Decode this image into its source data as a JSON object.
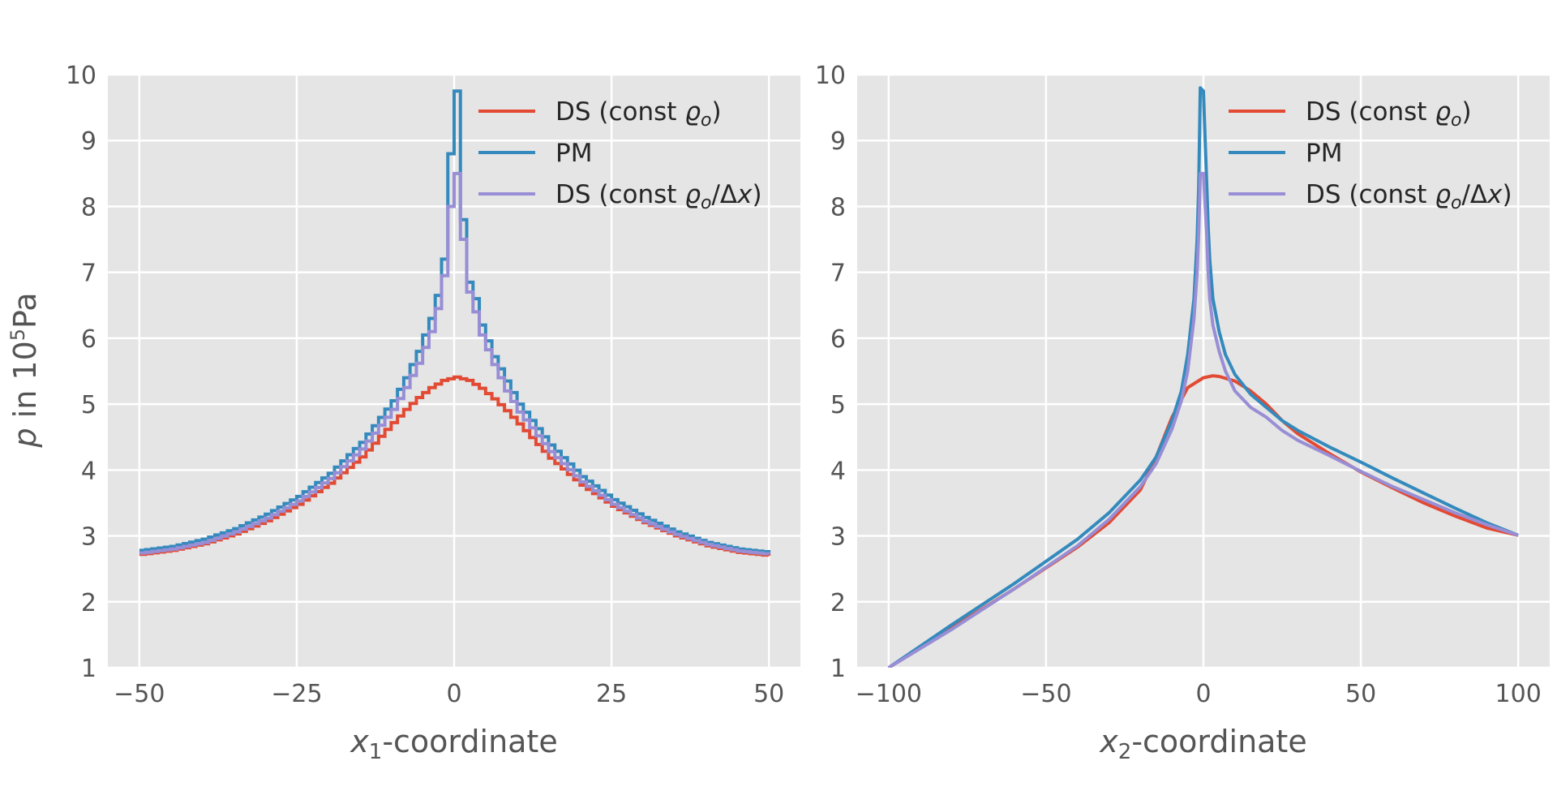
{
  "figure": {
    "ylabel_prefix": "p",
    "ylabel_middle": " in 10",
    "ylabel_exp": "5",
    "ylabel_unit": "Pa"
  },
  "colors": {
    "panel_bg": "#E5E5E5",
    "grid": "#FFFFFF",
    "text": "#555555",
    "legend_text": "#262626",
    "series": [
      "#E24A33",
      "#348ABD",
      "#988ED5"
    ]
  },
  "chart_data": [
    {
      "type": "line",
      "style": "step",
      "xlabel_var": "x",
      "xlabel_sub": "1",
      "xlabel_rest": "-coordinate",
      "xlim": [
        -55,
        55
      ],
      "ylim": [
        1,
        10
      ],
      "xticks": [
        "−50",
        "−25",
        "0",
        "25",
        "50"
      ],
      "xtick_values": [
        -50,
        -25,
        0,
        25,
        50
      ],
      "yticks": [
        "1",
        "2",
        "3",
        "4",
        "5",
        "6",
        "7",
        "8",
        "9",
        "10"
      ],
      "ytick_values": [
        1,
        2,
        3,
        4,
        5,
        6,
        7,
        8,
        9,
        10
      ],
      "grid": true,
      "legend_position": "top-right",
      "series": [
        {
          "name_plain": "DS (const ",
          "name_symbol": "ϱ",
          "name_sub": "o",
          "name_tail": ")",
          "name_delta": "",
          "color_index": 0,
          "x": [
            -50,
            -45,
            -40,
            -35,
            -30,
            -25,
            -20,
            -15,
            -10,
            -8,
            -6,
            -4,
            -2,
            0,
            2,
            4,
            6,
            8,
            10,
            15,
            20,
            25,
            30,
            35,
            40,
            45,
            50
          ],
          "y": [
            2.72,
            2.78,
            2.88,
            3.03,
            3.23,
            3.48,
            3.8,
            4.2,
            4.72,
            4.92,
            5.1,
            5.25,
            5.36,
            5.41,
            5.36,
            5.24,
            5.08,
            4.9,
            4.7,
            4.18,
            3.77,
            3.45,
            3.2,
            3.0,
            2.85,
            2.75,
            2.7
          ]
        },
        {
          "name_plain": "PM",
          "name_symbol": "",
          "name_sub": "",
          "name_tail": "",
          "name_delta": "",
          "color_index": 1,
          "x": [
            -50,
            -45,
            -40,
            -35,
            -30,
            -25,
            -20,
            -15,
            -10,
            -8,
            -6,
            -4,
            -3,
            -2,
            -1.5,
            -1,
            -0.5,
            0,
            0.5,
            1,
            1.5,
            2,
            3,
            4,
            6,
            8,
            10,
            15,
            20,
            25,
            30,
            35,
            40,
            45,
            50
          ],
          "y": [
            2.78,
            2.84,
            2.95,
            3.11,
            3.33,
            3.6,
            3.95,
            4.42,
            5.05,
            5.4,
            5.8,
            6.3,
            6.65,
            7.2,
            7.9,
            8.8,
            9.75,
            9.75,
            8.8,
            7.8,
            7.1,
            6.85,
            6.6,
            6.2,
            5.72,
            5.35,
            5.0,
            4.38,
            3.9,
            3.55,
            3.28,
            3.06,
            2.9,
            2.8,
            2.75
          ]
        },
        {
          "name_plain": "DS (const ",
          "name_symbol": "ϱ",
          "name_sub": "o",
          "name_tail": ")",
          "name_delta": "/Δx",
          "color_index": 2,
          "x": [
            -50,
            -45,
            -40,
            -35,
            -30,
            -25,
            -20,
            -15,
            -10,
            -8,
            -6,
            -4,
            -3,
            -2,
            -1.5,
            -1,
            -0.5,
            0,
            0.5,
            1,
            1.5,
            2,
            3,
            4,
            6,
            8,
            10,
            15,
            20,
            25,
            30,
            35,
            40,
            45,
            50
          ],
          "y": [
            2.74,
            2.8,
            2.9,
            3.06,
            3.27,
            3.53,
            3.87,
            4.32,
            4.92,
            5.25,
            5.62,
            6.1,
            6.45,
            6.95,
            7.5,
            8.0,
            8.5,
            8.5,
            8.0,
            7.5,
            6.95,
            6.7,
            6.4,
            6.05,
            5.6,
            5.2,
            4.88,
            4.28,
            3.82,
            3.48,
            3.22,
            3.02,
            2.87,
            2.77,
            2.72
          ]
        }
      ]
    },
    {
      "type": "line",
      "style": "smooth",
      "xlabel_var": "x",
      "xlabel_sub": "2",
      "xlabel_rest": "-coordinate",
      "xlim": [
        -110,
        110
      ],
      "ylim": [
        1,
        10
      ],
      "xticks": [
        "−100",
        "−50",
        "0",
        "50",
        "100"
      ],
      "xtick_values": [
        -100,
        -50,
        0,
        50,
        100
      ],
      "yticks": [
        "1",
        "2",
        "3",
        "4",
        "5",
        "6",
        "7",
        "8",
        "9",
        "10"
      ],
      "ytick_values": [
        1,
        2,
        3,
        4,
        5,
        6,
        7,
        8,
        9,
        10
      ],
      "grid": true,
      "legend_position": "top-right",
      "series": [
        {
          "name_plain": "DS (const ",
          "name_symbol": "ϱ",
          "name_sub": "o",
          "name_tail": ")",
          "name_delta": "",
          "color_index": 0,
          "x": [
            -100,
            -80,
            -60,
            -40,
            -30,
            -20,
            -15,
            -10,
            -5,
            0,
            3,
            5,
            10,
            15,
            20,
            25,
            30,
            40,
            50,
            60,
            70,
            80,
            90,
            100
          ],
          "y": [
            1.0,
            1.6,
            2.2,
            2.83,
            3.2,
            3.7,
            4.2,
            4.8,
            5.25,
            5.4,
            5.43,
            5.42,
            5.35,
            5.2,
            5.0,
            4.75,
            4.55,
            4.25,
            3.97,
            3.73,
            3.5,
            3.3,
            3.12,
            3.01
          ]
        },
        {
          "name_plain": "PM",
          "name_symbol": "",
          "name_sub": "",
          "name_tail": "",
          "name_delta": "",
          "color_index": 1,
          "x": [
            -100,
            -80,
            -60,
            -40,
            -30,
            -20,
            -15,
            -10,
            -7,
            -5,
            -3,
            -2,
            -1.5,
            -1,
            0,
            1,
            1.5,
            2,
            3,
            5,
            7,
            10,
            15,
            20,
            25,
            30,
            40,
            50,
            60,
            70,
            80,
            90,
            100
          ],
          "y": [
            1.0,
            1.65,
            2.28,
            2.95,
            3.35,
            3.85,
            4.2,
            4.75,
            5.2,
            5.75,
            6.6,
            7.5,
            8.3,
            9.8,
            9.75,
            8.4,
            7.7,
            7.2,
            6.6,
            6.1,
            5.75,
            5.45,
            5.15,
            4.95,
            4.75,
            4.6,
            4.35,
            4.12,
            3.88,
            3.65,
            3.42,
            3.2,
            3.01
          ]
        },
        {
          "name_plain": "DS (const ",
          "name_symbol": "ϱ",
          "name_sub": "o",
          "name_tail": ")",
          "name_delta": "/Δx",
          "color_index": 2,
          "x": [
            -100,
            -80,
            -60,
            -40,
            -30,
            -20,
            -15,
            -10,
            -7,
            -5,
            -3,
            -2,
            -1.5,
            -1,
            0,
            1,
            1.5,
            2,
            3,
            5,
            7,
            10,
            15,
            20,
            25,
            30,
            40,
            50,
            60,
            70,
            80,
            90,
            100
          ],
          "y": [
            1.0,
            1.58,
            2.2,
            2.85,
            3.25,
            3.75,
            4.1,
            4.62,
            5.05,
            5.5,
            6.3,
            7.0,
            7.6,
            8.5,
            8.5,
            7.6,
            7.0,
            6.6,
            6.2,
            5.8,
            5.5,
            5.2,
            4.95,
            4.8,
            4.6,
            4.45,
            4.22,
            3.98,
            3.75,
            3.55,
            3.35,
            3.17,
            3.01
          ]
        }
      ]
    }
  ]
}
